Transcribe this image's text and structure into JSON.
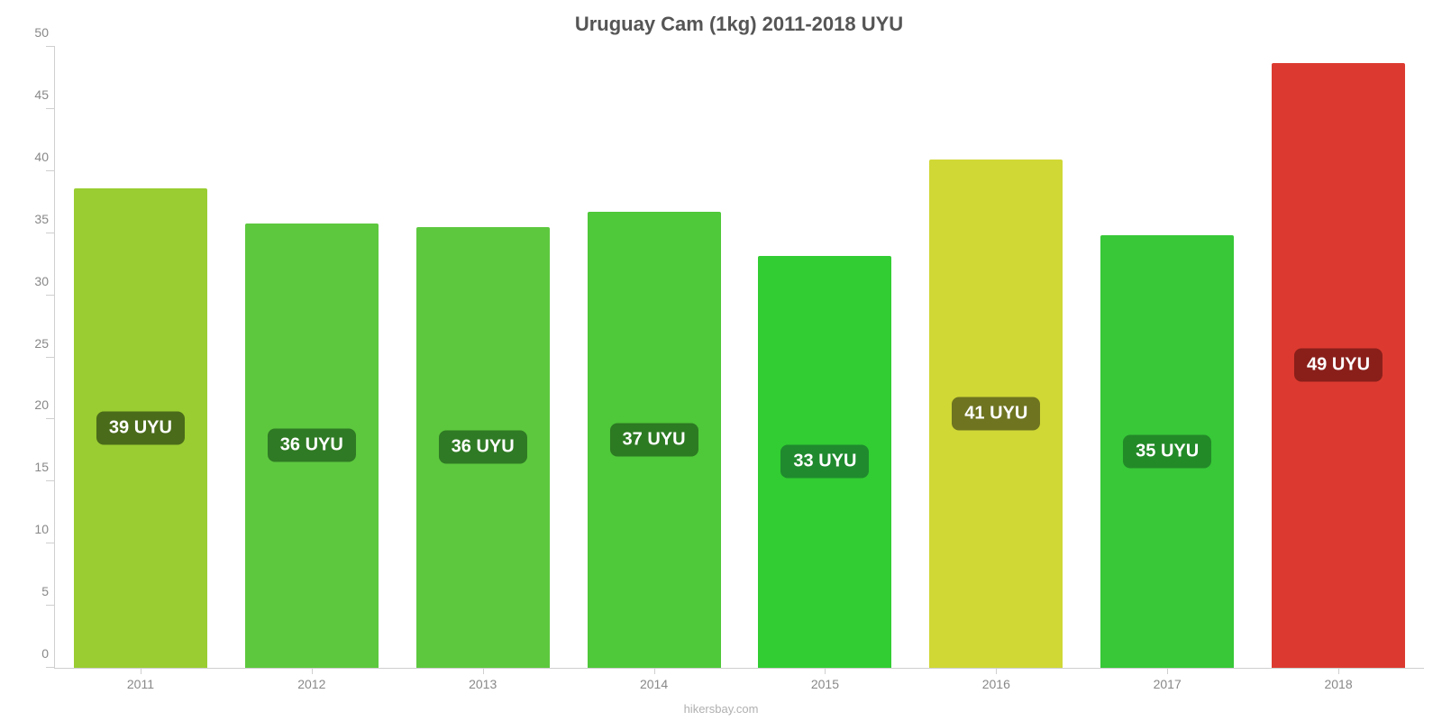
{
  "chart": {
    "type": "bar",
    "title": "Uruguay Cam (1kg) 2011-2018 UYU",
    "title_fontsize": 22,
    "title_color": "#555555",
    "background_color": "#ffffff",
    "axis_color": "#cfcfcf",
    "label_color": "#888888",
    "tick_fontsize": 14,
    "xlabel_fontsize": 14,
    "badge_fontsize": 20,
    "badge_text_color": "#ffffff",
    "bar_width": 0.78,
    "ylim": [
      0,
      50
    ],
    "yticks": [
      0,
      5,
      10,
      15,
      20,
      25,
      30,
      35,
      40,
      45,
      50
    ],
    "categories": [
      "2011",
      "2012",
      "2013",
      "2014",
      "2015",
      "2016",
      "2017",
      "2018"
    ],
    "values": [
      38.6,
      35.8,
      35.5,
      36.7,
      33.2,
      40.9,
      34.8,
      48.7
    ],
    "value_labels": [
      "39 UYU",
      "36 UYU",
      "36 UYU",
      "37 UYU",
      "33 UYU",
      "41 UYU",
      "35 UYU",
      "49 UYU"
    ],
    "bar_colors": [
      "#9acd32",
      "#5dc83e",
      "#5dc83e",
      "#4fc839",
      "#32cd32",
      "#d0d836",
      "#38c838",
      "#dc3a30"
    ],
    "badge_colors": [
      "#4a6b1a",
      "#2f7a24",
      "#2f7a24",
      "#2c7a22",
      "#1f8a2e",
      "#6e7420",
      "#238a28",
      "#8a1f1a"
    ],
    "source_label": "hikersbay.com",
    "source_fontsize": 13,
    "source_color": "#b0b0b0"
  }
}
